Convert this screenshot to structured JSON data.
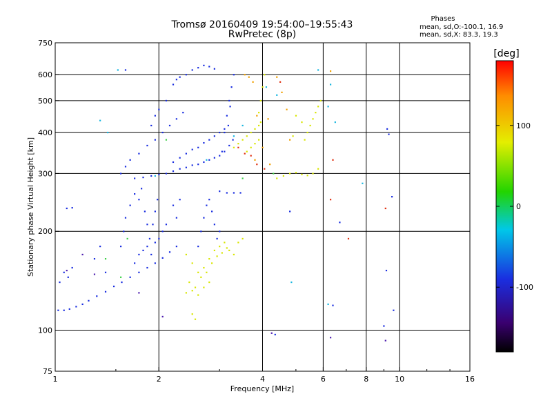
{
  "chart_data": {
    "type": "scatter",
    "title": "Tromsø 20160409 19:54:00–19:55:43",
    "subtitle": "RwPretec (8p)",
    "xlabel": "Frequency [MHz]",
    "ylabel": "Stationary phase Virtual Height [km]",
    "xscale": "log",
    "yscale": "log",
    "xlim": [
      1,
      16
    ],
    "ylim": [
      75,
      750
    ],
    "xticks": [
      1,
      2,
      4,
      6,
      8,
      10,
      16
    ],
    "xgrid": [
      2,
      4,
      6,
      8,
      10
    ],
    "yticks": [
      75,
      100,
      200,
      300,
      400,
      500,
      600,
      750
    ],
    "ygrid": [
      100,
      200,
      300,
      400,
      500,
      600
    ],
    "grid": true,
    "phases_legend": {
      "title": "Phases",
      "line_o": "mean, sd,O:-100.1, 16.9",
      "line_x": "mean, sd,X:  83.3, 19.3"
    },
    "colorbar": {
      "label": "[deg]",
      "range": [
        -180,
        180
      ],
      "ticks": [
        100,
        0,
        -100
      ],
      "tick_labels": [
        "100",
        "0",
        "-100"
      ]
    },
    "series": [
      {
        "points": [
          [
            1.02,
            115
          ],
          [
            1.06,
            115
          ],
          [
            1.1,
            116
          ],
          [
            1.15,
            118
          ],
          [
            1.2,
            120
          ],
          [
            1.25,
            123
          ],
          [
            1.32,
            127
          ],
          [
            1.4,
            131
          ],
          [
            1.48,
            136
          ],
          [
            1.56,
            140
          ],
          [
            1.65,
            145
          ],
          [
            1.75,
            150
          ],
          [
            1.85,
            155
          ],
          [
            1.95,
            160
          ],
          [
            2.05,
            166
          ],
          [
            2.15,
            173
          ],
          [
            2.25,
            180
          ],
          [
            1.03,
            140
          ],
          [
            1.06,
            150
          ],
          [
            1.09,
            145
          ],
          [
            1.12,
            155
          ],
          [
            1.3,
            165
          ],
          [
            1.35,
            180
          ],
          [
            1.4,
            150
          ],
          [
            1.55,
            180
          ],
          [
            1.58,
            200
          ],
          [
            1.6,
            220
          ],
          [
            1.65,
            240
          ],
          [
            1.7,
            260
          ],
          [
            1.75,
            250
          ],
          [
            1.78,
            270
          ],
          [
            1.82,
            230
          ],
          [
            1.85,
            210
          ],
          [
            1.88,
            190
          ],
          [
            1.92,
            210
          ],
          [
            1.95,
            230
          ],
          [
            1.98,
            250
          ],
          [
            1.7,
            160
          ],
          [
            1.75,
            170
          ],
          [
            1.8,
            175
          ],
          [
            1.85,
            180
          ],
          [
            1.9,
            170
          ],
          [
            1.95,
            185
          ],
          [
            2.0,
            190
          ],
          [
            2.05,
            200
          ],
          [
            2.1,
            210
          ],
          [
            2.2,
            240
          ],
          [
            2.3,
            250
          ],
          [
            2.25,
            220
          ],
          [
            1.7,
            290
          ],
          [
            1.8,
            292
          ],
          [
            1.9,
            295
          ],
          [
            2.0,
            298
          ],
          [
            2.1,
            300
          ],
          [
            2.2,
            305
          ],
          [
            2.3,
            310
          ],
          [
            2.4,
            313
          ],
          [
            2.5,
            318
          ],
          [
            2.6,
            320
          ],
          [
            2.7,
            325
          ],
          [
            2.8,
            330
          ],
          [
            2.9,
            335
          ],
          [
            3.0,
            340
          ],
          [
            3.1,
            350
          ],
          [
            3.2,
            365
          ],
          [
            2.2,
            325
          ],
          [
            2.3,
            335
          ],
          [
            2.4,
            345
          ],
          [
            2.5,
            355
          ],
          [
            2.6,
            360
          ],
          [
            2.7,
            372
          ],
          [
            2.8,
            380
          ],
          [
            2.9,
            390
          ],
          [
            3.0,
            400
          ],
          [
            3.1,
            410
          ],
          [
            1.55,
            300
          ],
          [
            1.6,
            315
          ],
          [
            1.65,
            330
          ],
          [
            1.75,
            345
          ],
          [
            1.85,
            365
          ],
          [
            1.95,
            380
          ],
          [
            2.05,
            400
          ],
          [
            2.15,
            420
          ],
          [
            2.25,
            440
          ],
          [
            2.35,
            460
          ],
          [
            1.9,
            420
          ],
          [
            1.95,
            450
          ],
          [
            2.0,
            470
          ],
          [
            2.1,
            500
          ],
          [
            2.2,
            560
          ],
          [
            2.25,
            580
          ],
          [
            2.3,
            590
          ],
          [
            2.4,
            600
          ],
          [
            2.5,
            620
          ],
          [
            2.6,
            630
          ],
          [
            2.7,
            640
          ],
          [
            2.8,
            635
          ],
          [
            2.9,
            625
          ],
          [
            3.05,
            350
          ],
          [
            3.1,
            400
          ],
          [
            3.15,
            450
          ],
          [
            3.2,
            500
          ],
          [
            3.25,
            550
          ],
          [
            3.3,
            600
          ],
          [
            3.18,
            420
          ],
          [
            3.22,
            480
          ],
          [
            3.28,
            380
          ],
          [
            2.6,
            180
          ],
          [
            2.65,
            200
          ],
          [
            2.7,
            220
          ],
          [
            2.75,
            240
          ],
          [
            2.8,
            250
          ],
          [
            2.85,
            230
          ],
          [
            2.9,
            210
          ],
          [
            2.95,
            190
          ],
          [
            3.0,
            200
          ],
          [
            3.0,
            265
          ],
          [
            3.15,
            262
          ],
          [
            3.3,
            262
          ],
          [
            3.45,
            262
          ],
          [
            1.08,
            235
          ],
          [
            1.12,
            236
          ],
          [
            1.6,
            620
          ],
          [
            4.35,
            97
          ],
          [
            4.8,
            230
          ],
          [
            6.7,
            213
          ],
          [
            9.0,
            103
          ],
          [
            9.2,
            410
          ],
          [
            9.3,
            395
          ],
          [
            9.15,
            152
          ],
          [
            9.6,
            115
          ],
          [
            9.5,
            255
          ],
          [
            6.4,
            119
          ]
        ],
        "color": "#1a2ee0"
      },
      {
        "points": [
          [
            2.4,
            170
          ],
          [
            2.5,
            160
          ],
          [
            2.6,
            150
          ],
          [
            2.7,
            155
          ],
          [
            2.8,
            165
          ],
          [
            2.9,
            175
          ],
          [
            3.0,
            180
          ],
          [
            3.1,
            185
          ],
          [
            3.2,
            175
          ],
          [
            3.3,
            170
          ],
          [
            2.45,
            140
          ],
          [
            2.55,
            135
          ],
          [
            2.65,
            145
          ],
          [
            2.75,
            150
          ],
          [
            2.85,
            160
          ],
          [
            2.95,
            168
          ],
          [
            3.05,
            172
          ],
          [
            3.15,
            178
          ],
          [
            2.4,
            130
          ],
          [
            2.5,
            132
          ],
          [
            2.6,
            128
          ],
          [
            2.7,
            135
          ],
          [
            2.8,
            140
          ],
          [
            2.5,
            112
          ],
          [
            2.55,
            108
          ],
          [
            3.3,
            360
          ],
          [
            3.4,
            370
          ],
          [
            3.5,
            380
          ],
          [
            3.6,
            390
          ],
          [
            3.7,
            400
          ],
          [
            3.8,
            410
          ],
          [
            3.9,
            420
          ],
          [
            3.95,
            430
          ],
          [
            3.6,
            350
          ],
          [
            3.7,
            360
          ],
          [
            3.8,
            370
          ],
          [
            3.9,
            380
          ],
          [
            3.9,
            460
          ],
          [
            3.95,
            500
          ],
          [
            4.0,
            550
          ],
          [
            4.05,
            600
          ],
          [
            4.4,
            290
          ],
          [
            4.6,
            295
          ],
          [
            4.8,
            300
          ],
          [
            5.0,
            302
          ],
          [
            5.2,
            298
          ],
          [
            5.4,
            296
          ],
          [
            5.6,
            300
          ],
          [
            5.8,
            310
          ],
          [
            5.3,
            380
          ],
          [
            5.4,
            400
          ],
          [
            5.5,
            420
          ],
          [
            5.6,
            440
          ],
          [
            5.7,
            460
          ],
          [
            5.8,
            480
          ],
          [
            5.9,
            500
          ],
          [
            3.4,
            185
          ],
          [
            3.5,
            190
          ],
          [
            5.2,
            430
          ],
          [
            5.0,
            450
          ],
          [
            4.9,
            390
          ]
        ],
        "color": "#d8e600"
      },
      {
        "points": [
          [
            1.52,
            620
          ],
          [
            1.35,
            435
          ],
          [
            1.42,
            400
          ],
          [
            1.95,
            295
          ],
          [
            2.75,
            330
          ],
          [
            3.3,
            390
          ],
          [
            3.5,
            420
          ],
          [
            4.1,
            550
          ],
          [
            4.4,
            520
          ],
          [
            5.8,
            620
          ],
          [
            6.2,
            480
          ],
          [
            6.3,
            560
          ],
          [
            6.5,
            430
          ],
          [
            7.8,
            280
          ],
          [
            6.2,
            120
          ],
          [
            4.85,
            140
          ]
        ],
        "color": "#19b7e0"
      },
      {
        "points": [
          [
            3.55,
            600
          ],
          [
            3.65,
            590
          ],
          [
            3.75,
            570
          ],
          [
            3.85,
            450
          ],
          [
            4.0,
            360
          ],
          [
            4.2,
            320
          ],
          [
            4.4,
            590
          ],
          [
            4.55,
            530
          ],
          [
            4.7,
            470
          ],
          [
            4.8,
            380
          ],
          [
            6.3,
            615
          ],
          [
            3.8,
            330
          ],
          [
            4.15,
            440
          ]
        ],
        "color": "#f0a000"
      },
      {
        "points": [
          [
            3.7,
            340
          ],
          [
            3.85,
            320
          ],
          [
            4.05,
            310
          ],
          [
            4.5,
            570
          ],
          [
            6.4,
            330
          ],
          [
            6.3,
            250
          ],
          [
            7.1,
            190
          ],
          [
            9.1,
            235
          ],
          [
            3.4,
            360
          ],
          [
            3.55,
            345
          ]
        ],
        "color": "#e03010"
      },
      {
        "points": [
          [
            1.4,
            165
          ],
          [
            1.55,
            145
          ],
          [
            2.1,
            380
          ],
          [
            3.5,
            290
          ],
          [
            4.3,
            300
          ],
          [
            1.62,
            190
          ]
        ],
        "color": "#3fd04a"
      },
      {
        "points": [
          [
            1.08,
            152
          ],
          [
            1.2,
            170
          ],
          [
            1.3,
            148
          ],
          [
            1.75,
            130
          ],
          [
            2.05,
            110
          ],
          [
            4.25,
            98
          ],
          [
            6.3,
            95
          ],
          [
            9.1,
            93
          ]
        ],
        "color": "#5020b0"
      }
    ]
  }
}
